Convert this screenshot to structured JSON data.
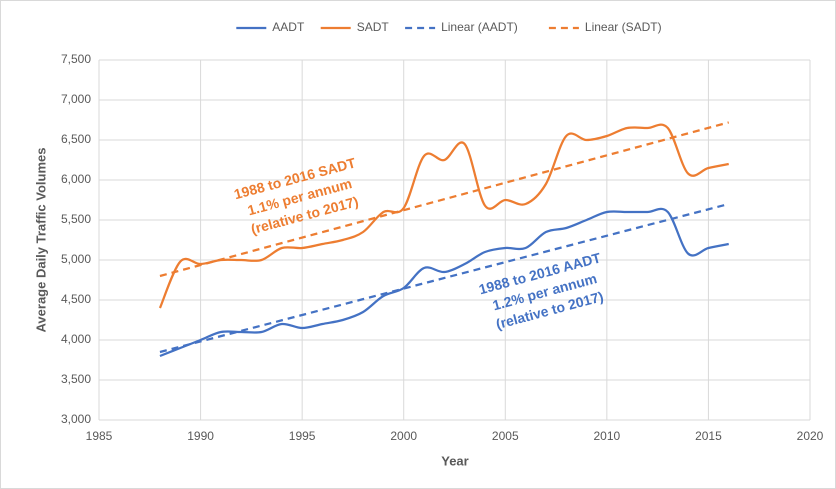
{
  "chart_data": {
    "type": "line",
    "xlabel": "Year",
    "ylabel": "Average Daily Traffic Volumes",
    "xlim": [
      1985,
      2020
    ],
    "xticks": [
      1985,
      1990,
      1995,
      2000,
      2005,
      2010,
      2015,
      2020
    ],
    "ylim": [
      3000,
      7500
    ],
    "yticks": [
      {
        "value": 3000,
        "label": "3,000"
      },
      {
        "value": 3500,
        "label": "3,500"
      },
      {
        "value": 4000,
        "label": "4,000"
      },
      {
        "value": 4500,
        "label": "4,500"
      },
      {
        "value": 5000,
        "label": "5,000"
      },
      {
        "value": 5500,
        "label": "5,500"
      },
      {
        "value": 6000,
        "label": "6,000"
      },
      {
        "value": 6500,
        "label": "6,500"
      },
      {
        "value": 7000,
        "label": "7,000"
      },
      {
        "value": 7500,
        "label": "7,500"
      }
    ],
    "grid": true,
    "legend": "top",
    "series": [
      {
        "name": "AADT",
        "color": "#4472c4",
        "dash": false,
        "x": [
          1988,
          1989,
          1990,
          1991,
          1992,
          1993,
          1994,
          1995,
          1996,
          1997,
          1998,
          1999,
          2000,
          2001,
          2002,
          2003,
          2004,
          2005,
          2006,
          2007,
          2008,
          2009,
          2010,
          2011,
          2012,
          2013,
          2014,
          2015,
          2016
        ],
        "values": [
          3800,
          3900,
          4000,
          4100,
          4100,
          4100,
          4200,
          4150,
          4200,
          4250,
          4350,
          4550,
          4650,
          4900,
          4850,
          4950,
          5100,
          5150,
          5150,
          5350,
          5400,
          5500,
          5600,
          5600,
          5600,
          5600,
          5080,
          5150,
          5200
        ]
      },
      {
        "name": "SADT",
        "color": "#ed7d31",
        "dash": false,
        "x": [
          1988,
          1989,
          1990,
          1991,
          1992,
          1993,
          1994,
          1995,
          1996,
          1997,
          1998,
          1999,
          2000,
          2001,
          2002,
          2003,
          2004,
          2005,
          2006,
          2007,
          2008,
          2009,
          2010,
          2011,
          2012,
          2013,
          2014,
          2015,
          2016
        ],
        "values": [
          4400,
          4980,
          4950,
          5000,
          5000,
          5000,
          5150,
          5150,
          5200,
          5250,
          5350,
          5600,
          5650,
          6300,
          6250,
          6450,
          5680,
          5750,
          5700,
          5950,
          6550,
          6500,
          6550,
          6650,
          6650,
          6650,
          6080,
          6150,
          6200
        ]
      },
      {
        "name": "Linear (AADT)",
        "color": "#4472c4",
        "dash": true,
        "x": [
          1988,
          2016
        ],
        "values": [
          3850,
          5700
        ]
      },
      {
        "name": "Linear (SADT)",
        "color": "#ed7d31",
        "dash": true,
        "x": [
          1988,
          2016
        ],
        "values": [
          4800,
          6720
        ]
      }
    ],
    "annotations": [
      {
        "lines": [
          "1988 to 2016 SADT",
          "1.1% per annum",
          "(relative to 2017)"
        ],
        "color": "#ed7d31"
      },
      {
        "lines": [
          "1988 to 2016 AADT",
          "1.2% per annum",
          "(relative to 2017)"
        ],
        "color": "#4472c4"
      }
    ]
  }
}
